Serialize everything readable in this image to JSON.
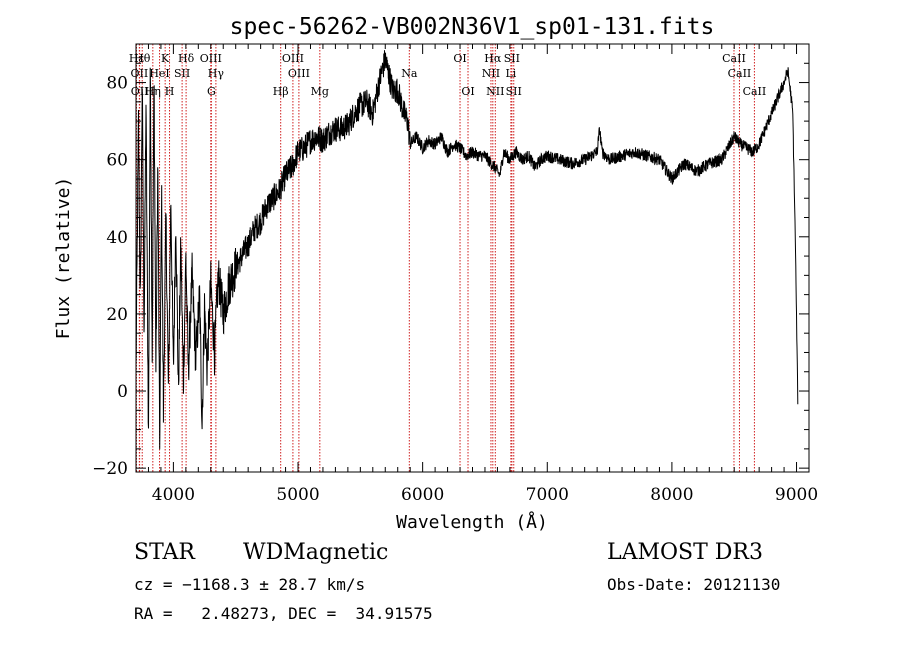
{
  "chart_data": {
    "type": "line",
    "title": "spec-56262-VB002N36V1_sp01-131.fits",
    "xlabel": "Wavelength (Å)",
    "ylabel": "Flux (relative)",
    "xlim": [
      3700,
      9100
    ],
    "ylim": [
      -21,
      90
    ],
    "xticks_major": [
      4000,
      5000,
      6000,
      7000,
      8000,
      9000
    ],
    "xtick_labels": [
      "4000",
      "5000",
      "6000",
      "7000",
      "8000",
      "9000"
    ],
    "yticks_major": [
      -20,
      0,
      20,
      40,
      60,
      80
    ],
    "ytick_labels": [
      "−20",
      "0",
      "20",
      "40",
      "60",
      "80"
    ],
    "x_minor_step": 100,
    "y_minor_step": 5,
    "grid": false,
    "series": [
      {
        "name": "flux",
        "color": "#000000",
        "anchors": [
          [
            3700,
            5
          ],
          [
            3720,
            70
          ],
          [
            3735,
            20
          ],
          [
            3750,
            80
          ],
          [
            3765,
            15
          ],
          [
            3780,
            75
          ],
          [
            3800,
            -12
          ],
          [
            3815,
            85
          ],
          [
            3830,
            10
          ],
          [
            3845,
            82
          ],
          [
            3860,
            5
          ],
          [
            3875,
            60
          ],
          [
            3890,
            -15
          ],
          [
            3905,
            52
          ],
          [
            3920,
            -5
          ],
          [
            3940,
            45
          ],
          [
            3960,
            0
          ],
          [
            3980,
            50
          ],
          [
            4000,
            5
          ],
          [
            4020,
            45
          ],
          [
            4040,
            0
          ],
          [
            4060,
            38
          ],
          [
            4080,
            2
          ],
          [
            4100,
            35
          ],
          [
            4120,
            5
          ],
          [
            4150,
            30
          ],
          [
            4180,
            8
          ],
          [
            4210,
            25
          ],
          [
            4230,
            -8
          ],
          [
            4250,
            22
          ],
          [
            4270,
            6
          ],
          [
            4300,
            28
          ],
          [
            4330,
            10
          ],
          [
            4360,
            30
          ],
          [
            4400,
            20
          ],
          [
            4450,
            28
          ],
          [
            4500,
            32
          ],
          [
            4550,
            35
          ],
          [
            4600,
            38
          ],
          [
            4650,
            42
          ],
          [
            4700,
            44
          ],
          [
            4750,
            48
          ],
          [
            4800,
            50
          ],
          [
            4850,
            52
          ],
          [
            4900,
            56
          ],
          [
            4950,
            58
          ],
          [
            5000,
            62
          ],
          [
            5050,
            63
          ],
          [
            5100,
            65
          ],
          [
            5150,
            66
          ],
          [
            5200,
            65
          ],
          [
            5250,
            67
          ],
          [
            5300,
            68
          ],
          [
            5350,
            68
          ],
          [
            5400,
            69
          ],
          [
            5450,
            72
          ],
          [
            5500,
            74
          ],
          [
            5550,
            75
          ],
          [
            5600,
            72
          ],
          [
            5650,
            80
          ],
          [
            5700,
            86
          ],
          [
            5730,
            82
          ],
          [
            5760,
            78
          ],
          [
            5800,
            78
          ],
          [
            5850,
            72
          ],
          [
            5880,
            70
          ],
          [
            5900,
            64
          ],
          [
            5950,
            66
          ],
          [
            6000,
            63
          ],
          [
            6050,
            65
          ],
          [
            6100,
            64
          ],
          [
            6150,
            66
          ],
          [
            6200,
            62
          ],
          [
            6250,
            64
          ],
          [
            6300,
            63
          ],
          [
            6350,
            61
          ],
          [
            6400,
            62
          ],
          [
            6450,
            61
          ],
          [
            6500,
            61
          ],
          [
            6550,
            59
          ],
          [
            6580,
            58
          ],
          [
            6620,
            56
          ],
          [
            6650,
            62
          ],
          [
            6700,
            60
          ],
          [
            6750,
            62
          ],
          [
            6800,
            60
          ],
          [
            6850,
            61
          ],
          [
            6900,
            58
          ],
          [
            6950,
            60
          ],
          [
            7000,
            61
          ],
          [
            7100,
            60
          ],
          [
            7200,
            59
          ],
          [
            7300,
            60
          ],
          [
            7400,
            62
          ],
          [
            7420,
            68
          ],
          [
            7440,
            62
          ],
          [
            7500,
            60
          ],
          [
            7600,
            61
          ],
          [
            7700,
            62
          ],
          [
            7800,
            61
          ],
          [
            7900,
            60
          ],
          [
            8000,
            55
          ],
          [
            8050,
            57
          ],
          [
            8100,
            59
          ],
          [
            8150,
            58
          ],
          [
            8200,
            57
          ],
          [
            8300,
            59
          ],
          [
            8400,
            60
          ],
          [
            8500,
            66
          ],
          [
            8550,
            64
          ],
          [
            8600,
            63
          ],
          [
            8650,
            62
          ],
          [
            8700,
            64
          ],
          [
            8750,
            68
          ],
          [
            8800,
            72
          ],
          [
            8850,
            76
          ],
          [
            8900,
            80
          ],
          [
            8930,
            83
          ],
          [
            8950,
            78
          ],
          [
            8970,
            72
          ],
          [
            8990,
            40
          ],
          [
            9010,
            -2
          ]
        ]
      }
    ],
    "line_markers": {
      "color": "#d02020",
      "lines": [
        {
          "name": "Hε",
          "wavelength": 3704,
          "label": "Hε",
          "row": 1
        },
        {
          "name": "OII",
          "wavelength": 3727,
          "label": "OII",
          "row": 2
        },
        {
          "name": "OII",
          "wavelength": 3729,
          "label": "OII",
          "row": 3
        },
        {
          "name": "Hθ",
          "wavelength": 3750,
          "label": "Hθ",
          "row": 1
        },
        {
          "name": "HeI",
          "wavelength": 3889,
          "label": "HeI",
          "row": 2
        },
        {
          "name": "Hη",
          "wavelength": 3835,
          "label": "Hη",
          "row": 3
        },
        {
          "name": "K",
          "wavelength": 3934,
          "label": "K",
          "row": 1
        },
        {
          "name": "SII",
          "wavelength": 4070,
          "label": "SII",
          "row": 2
        },
        {
          "name": "H",
          "wavelength": 3969,
          "label": "H",
          "row": 3
        },
        {
          "name": "Hδ",
          "wavelength": 4102,
          "label": "Hδ",
          "row": 1
        },
        {
          "name": "OIII",
          "wavelength": 4300,
          "label": "OIII",
          "row": 1
        },
        {
          "name": "Hγ",
          "wavelength": 4341,
          "label": "Hγ",
          "row": 2
        },
        {
          "name": "G",
          "wavelength": 4305,
          "label": "G",
          "row": 3
        },
        {
          "name": "Hβ",
          "wavelength": 4861,
          "label": "Hβ",
          "row": 3
        },
        {
          "name": "OIII",
          "wavelength": 4959,
          "label": "OIII",
          "row": 1
        },
        {
          "name": "OIII",
          "wavelength": 5007,
          "label": "OIII",
          "row": 2
        },
        {
          "name": "Mg",
          "wavelength": 5175,
          "label": "Mg",
          "row": 3
        },
        {
          "name": "Na",
          "wavelength": 5893,
          "label": "Na",
          "row": 2
        },
        {
          "name": "OI",
          "wavelength": 6300,
          "label": "OI",
          "row": 1
        },
        {
          "name": "OI",
          "wavelength": 6364,
          "label": "OI",
          "row": 3
        },
        {
          "name": "Hα",
          "wavelength": 6563,
          "label": "Hα",
          "row": 1
        },
        {
          "name": "NII",
          "wavelength": 6548,
          "label": "NII",
          "row": 2
        },
        {
          "name": "NII",
          "wavelength": 6583,
          "label": "NII",
          "row": 3
        },
        {
          "name": "SII",
          "wavelength": 6716,
          "label": "SII",
          "row": 1
        },
        {
          "name": "Li",
          "wavelength": 6708,
          "label": "Li",
          "row": 2
        },
        {
          "name": "SII",
          "wavelength": 6731,
          "label": "SII",
          "row": 3
        },
        {
          "name": "CaII",
          "wavelength": 8498,
          "label": "CaII",
          "row": 1
        },
        {
          "name": "CaII",
          "wavelength": 8542,
          "label": "CaII",
          "row": 2
        },
        {
          "name": "CaII",
          "wavelength": 8662,
          "label": "CaII",
          "row": 3
        }
      ]
    }
  },
  "info": {
    "object_class": "STAR",
    "subclass": "WDMagnetic",
    "survey": "LAMOST DR3",
    "cz_line": "cz = −1168.3 ± 28.7 km/s",
    "obs_date_line": "Obs-Date: 20121130",
    "radec_line": "RA =   2.48273, DEC =  34.91575"
  }
}
